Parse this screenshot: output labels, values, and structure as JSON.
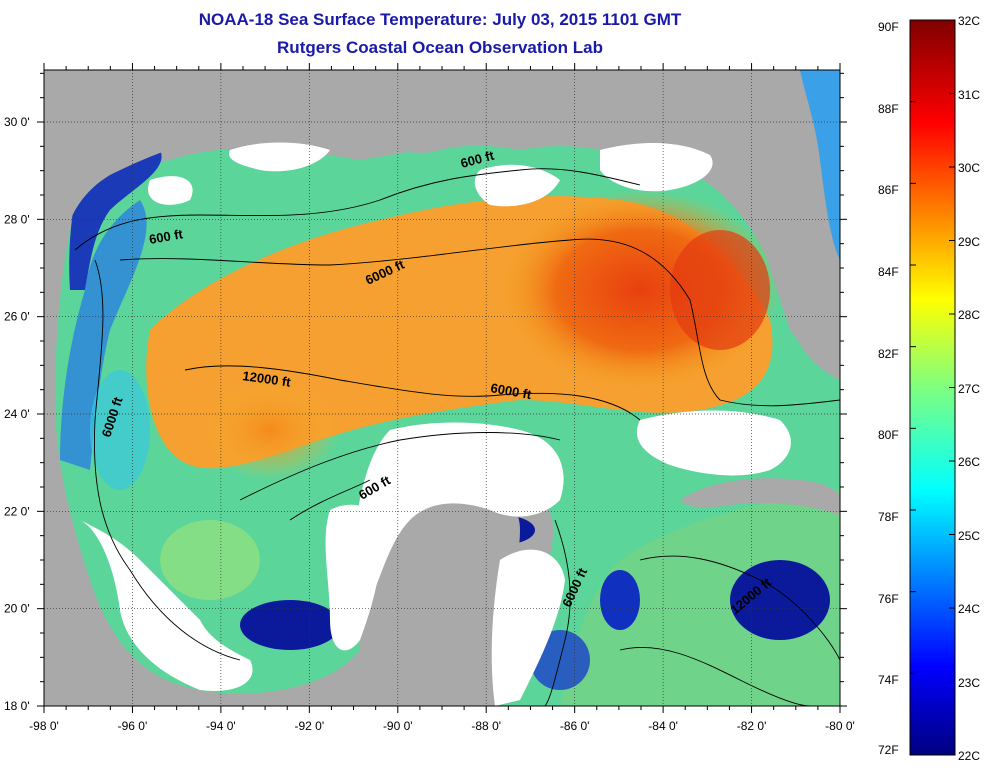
{
  "title": "NOAA-18 Sea Surface Temperature:  July 03, 2015 1101 GMT",
  "subtitle": "Rutgers Coastal Ocean Observation Lab",
  "map": {
    "lon_labels": [
      "-98 0'",
      "-96 0'",
      "-94 0'",
      "-92 0'",
      "-90 0'",
      "-88 0'",
      "-86 0'",
      "-84 0'",
      "-82 0'",
      "-80 0'"
    ],
    "lat_labels": [
      "30 0'",
      "28 0'",
      "26 0'",
      "24 0'",
      "22 0'",
      "20 0'",
      "18 0'"
    ],
    "contour_labels": [
      "600 ft",
      "600 ft",
      "6000 ft",
      "12000 ft",
      "6000 ft",
      "6000 ft",
      "600 ft",
      "6000 ft",
      "12000 ft"
    ],
    "colors": {
      "land": "#a9a9a9",
      "cloud": "#ffffff",
      "cold": "#0a1a9a",
      "warm": "#e83a10"
    }
  },
  "colorbar": {
    "fahrenheit": [
      "90F",
      "88F",
      "86F",
      "84F",
      "82F",
      "80F",
      "78F",
      "76F",
      "74F",
      "72F"
    ],
    "celsius": [
      "32C",
      "31C",
      "30C",
      "29C",
      "28C",
      "27C",
      "26C",
      "25C",
      "24C",
      "23C",
      "22C"
    ],
    "range_f": [
      72,
      90
    ],
    "range_c": [
      22,
      32
    ]
  }
}
